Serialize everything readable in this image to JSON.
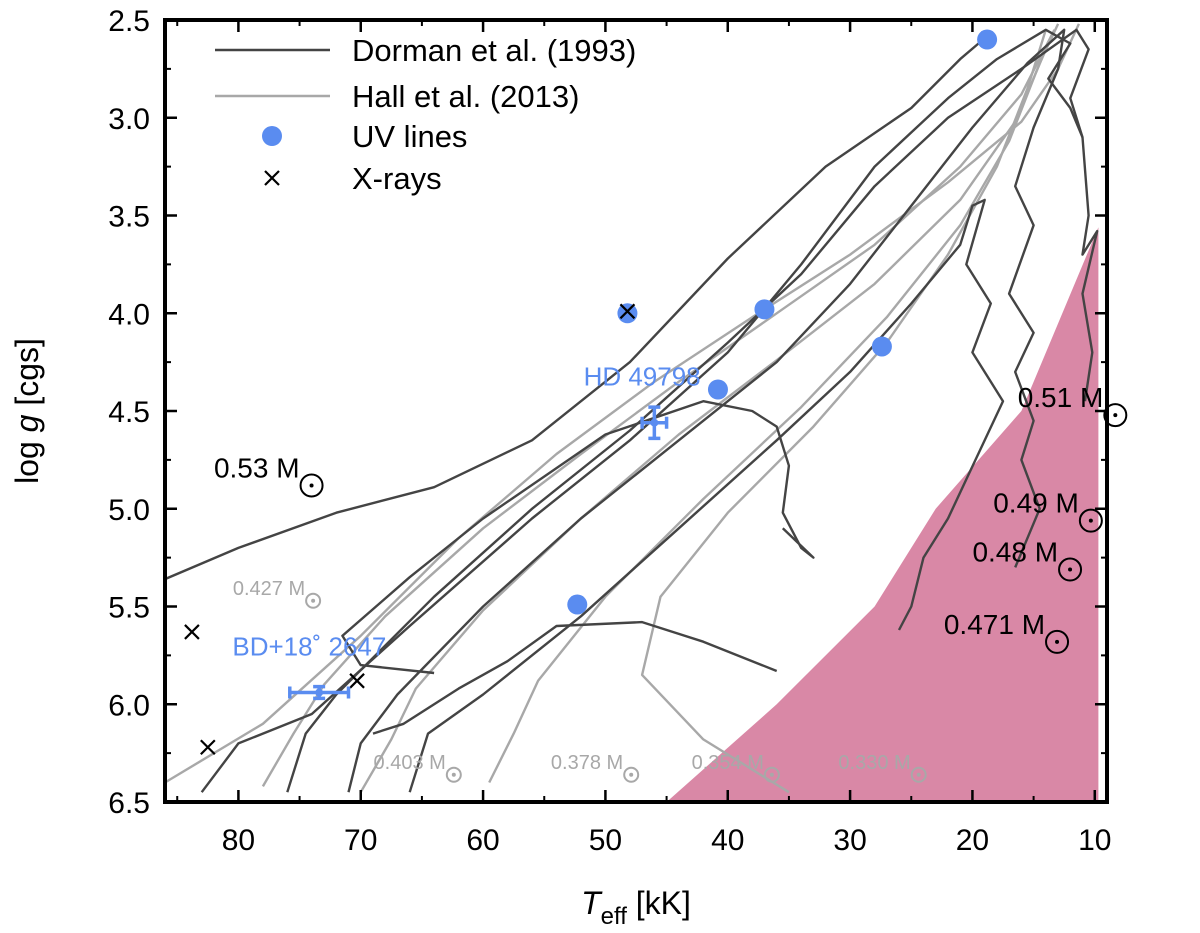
{
  "chart_data": {
    "type": "scatter",
    "xlabel_main": "T",
    "xlabel_sub": "eff",
    "xlabel_unit": " [kK]",
    "ylabel_main": "log ",
    "ylabel_italic": "g",
    "ylabel_unit": " [cgs]",
    "xlim": [
      86,
      9
    ],
    "ylim": [
      6.5,
      2.5
    ],
    "x_ticks": [
      80,
      70,
      60,
      50,
      40,
      30,
      20,
      10
    ],
    "x_tick_labels": [
      "80",
      "70",
      "60",
      "50",
      "40",
      "30",
      "20",
      "10"
    ],
    "y_ticks": [
      2.5,
      3.0,
      3.5,
      4.0,
      4.5,
      5.0,
      5.5,
      6.0,
      6.5
    ],
    "y_tick_labels": [
      "2.5",
      "3.0",
      "3.5",
      "4.0",
      "4.5",
      "5.0",
      "5.5",
      "6.0",
      "6.5"
    ],
    "legend": {
      "position": "top-left",
      "entries": [
        {
          "label": "Dorman et al. (1993)",
          "kind": "line",
          "color": "#444444"
        },
        {
          "label": "Hall et al. (2013)",
          "kind": "line",
          "color": "#a8a8a8"
        },
        {
          "label": "UV lines",
          "kind": "circle",
          "color": "#5a8cf0"
        },
        {
          "label": "X-rays",
          "kind": "cross",
          "color": "#000000"
        }
      ]
    },
    "series": [
      {
        "name": "UV lines",
        "color": "#5a8cf0",
        "points": [
          {
            "x": 18.8,
            "y": 2.6
          },
          {
            "x": 48.2,
            "y": 4.0
          },
          {
            "x": 37.0,
            "y": 3.98
          },
          {
            "x": 27.4,
            "y": 4.17
          },
          {
            "x": 40.8,
            "y": 4.39
          },
          {
            "x": 52.3,
            "y": 5.49
          }
        ]
      },
      {
        "name": "X-rays",
        "color": "#000000",
        "points": [
          {
            "x": 48.2,
            "y": 3.99
          },
          {
            "x": 83.8,
            "y": 5.63
          },
          {
            "x": 70.3,
            "y": 5.88
          },
          {
            "x": 82.5,
            "y": 6.22
          }
        ]
      }
    ],
    "stars": [
      {
        "label": "HD 49798",
        "x": 46.0,
        "y": 4.56,
        "xerr": 1.0,
        "yerr": 0.08,
        "label_x": 47.0,
        "label_y": 4.37
      },
      {
        "label": "BD+18˚ 2647",
        "x": 73.4,
        "y": 5.94,
        "xerr": 2.4,
        "yerr": 0.03,
        "label_x": 74.2,
        "label_y": 5.75
      }
    ],
    "shaded_region": {
      "name": "excluded region",
      "color": "#d988a6",
      "polygon": [
        [
          45.0,
          6.5
        ],
        [
          9.7,
          6.5
        ],
        [
          9.7,
          3.56
        ],
        [
          16.0,
          4.5
        ],
        [
          23.0,
          5.0
        ],
        [
          28.0,
          5.5
        ],
        [
          36.0,
          6.0
        ]
      ]
    },
    "hall_tracks": [
      {
        "mass": "0.427 M",
        "points": [
          [
            86.0,
            6.4
          ],
          [
            78.0,
            6.1
          ],
          [
            70.0,
            5.65
          ],
          [
            62.0,
            5.15
          ],
          [
            54.0,
            4.72
          ],
          [
            46.0,
            4.35
          ],
          [
            38.0,
            4.02
          ],
          [
            30.0,
            3.7
          ],
          [
            22.0,
            3.33
          ],
          [
            16.0,
            3.02
          ],
          [
            13.0,
            2.75
          ],
          [
            11.3,
            2.52
          ]
        ]
      },
      {
        "mass": "0.403 M",
        "points": [
          [
            78.0,
            6.42
          ],
          [
            75.5,
            6.15
          ],
          [
            73.0,
            5.9
          ],
          [
            68.0,
            5.55
          ],
          [
            60.0,
            5.1
          ],
          [
            52.0,
            4.72
          ],
          [
            44.0,
            4.35
          ],
          [
            36.0,
            4.0
          ],
          [
            28.0,
            3.65
          ],
          [
            21.0,
            3.25
          ],
          [
            16.0,
            2.88
          ],
          [
            13.3,
            2.55
          ]
        ]
      },
      {
        "mass": "0.378 M",
        "points": [
          [
            70.0,
            6.45
          ],
          [
            67.5,
            6.18
          ],
          [
            65.5,
            5.92
          ],
          [
            60.0,
            5.52
          ],
          [
            52.0,
            5.05
          ],
          [
            44.0,
            4.62
          ],
          [
            36.0,
            4.24
          ],
          [
            28.0,
            3.85
          ],
          [
            21.0,
            3.42
          ],
          [
            16.5,
            3.02
          ],
          [
            13.8,
            2.62
          ]
        ]
      },
      {
        "mass": "0.354 M",
        "points": [
          [
            59.5,
            6.4
          ],
          [
            57.5,
            6.15
          ],
          [
            55.5,
            5.88
          ],
          [
            50.0,
            5.45
          ],
          [
            42.0,
            4.95
          ],
          [
            34.0,
            4.48
          ],
          [
            27.0,
            4.02
          ],
          [
            21.0,
            3.55
          ],
          [
            17.0,
            3.12
          ],
          [
            14.5,
            2.72
          ],
          [
            13.0,
            2.52
          ]
        ]
      },
      {
        "mass": "0.330 M",
        "points": [
          [
            35.0,
            6.45
          ],
          [
            42.0,
            6.18
          ],
          [
            47.0,
            5.85
          ],
          [
            45.5,
            5.45
          ],
          [
            40.0,
            5.02
          ],
          [
            33.0,
            4.58
          ],
          [
            27.0,
            4.15
          ],
          [
            22.0,
            3.7
          ],
          [
            18.0,
            3.25
          ],
          [
            15.5,
            2.85
          ],
          [
            14.0,
            2.55
          ]
        ]
      }
    ],
    "dorman_tracks": [
      {
        "mass": "0.53 M",
        "points": [
          [
            86.0,
            5.36
          ],
          [
            80.0,
            5.2
          ],
          [
            72.0,
            5.02
          ],
          [
            64.0,
            4.89
          ],
          [
            56.0,
            4.65
          ],
          [
            48.0,
            4.25
          ],
          [
            40.0,
            3.72
          ],
          [
            32.0,
            3.25
          ],
          [
            25.0,
            2.95
          ],
          [
            21.0,
            2.7
          ],
          [
            19.5,
            2.62
          ],
          [
            18.5,
            2.57
          ]
        ]
      },
      {
        "mass": "0.51 M",
        "points": [
          [
            83.0,
            6.45
          ],
          [
            80.0,
            6.2
          ],
          [
            74.0,
            6.05
          ],
          [
            66.0,
            5.6
          ],
          [
            56.0,
            5.05
          ],
          [
            48.0,
            4.65
          ],
          [
            40.0,
            4.2
          ],
          [
            34.0,
            3.75
          ],
          [
            28.0,
            3.25
          ],
          [
            22.0,
            2.9
          ],
          [
            18.0,
            2.7
          ],
          [
            14.0,
            2.55
          ],
          [
            12.0,
            2.62
          ],
          [
            13.8,
            2.8
          ],
          [
            12.0,
            2.95
          ],
          [
            11.0,
            3.1
          ]
        ]
      },
      {
        "mass": "0.49 M",
        "points": [
          [
            76.0,
            6.45
          ],
          [
            74.5,
            6.15
          ],
          [
            72.0,
            5.95
          ],
          [
            64.0,
            5.45
          ],
          [
            56.0,
            5.0
          ],
          [
            48.0,
            4.6
          ],
          [
            40.0,
            4.15
          ],
          [
            34.0,
            3.8
          ],
          [
            28.0,
            3.35
          ],
          [
            22.0,
            3.0
          ],
          [
            16.0,
            2.75
          ],
          [
            11.5,
            2.55
          ],
          [
            10.5,
            2.65
          ],
          [
            12.0,
            2.9
          ],
          [
            11.0,
            3.1
          ],
          [
            10.5,
            3.5
          ],
          [
            11.0,
            3.7
          ],
          [
            9.8,
            3.58
          ],
          [
            11.0,
            3.9
          ],
          [
            10.2,
            4.2
          ],
          [
            10.8,
            4.45
          ]
        ]
      },
      {
        "mass": "0.48 M",
        "points": [
          [
            71.0,
            6.45
          ],
          [
            70.0,
            6.2
          ],
          [
            67.0,
            5.95
          ],
          [
            60.0,
            5.5
          ],
          [
            52.0,
            5.05
          ],
          [
            44.0,
            4.65
          ],
          [
            36.0,
            4.25
          ],
          [
            30.0,
            3.85
          ],
          [
            25.0,
            3.45
          ],
          [
            20.0,
            3.05
          ],
          [
            15.5,
            2.72
          ],
          [
            12.5,
            2.55
          ],
          [
            13.0,
            2.75
          ],
          [
            15.0,
            3.05
          ],
          [
            16.5,
            3.35
          ],
          [
            15.0,
            3.55
          ],
          [
            17.0,
            3.9
          ],
          [
            15.0,
            4.1
          ],
          [
            16.5,
            4.3
          ],
          [
            15.0,
            4.55
          ],
          [
            16.0,
            4.75
          ],
          [
            14.5,
            5.0
          ],
          [
            16.5,
            5.3
          ]
        ]
      },
      {
        "mass": "0.471 M",
        "points": [
          [
            66.0,
            6.45
          ],
          [
            64.5,
            6.15
          ],
          [
            60.0,
            5.95
          ],
          [
            52.0,
            5.55
          ],
          [
            44.0,
            5.1
          ],
          [
            36.0,
            4.65
          ],
          [
            30.0,
            4.3
          ],
          [
            25.0,
            3.95
          ],
          [
            21.0,
            3.65
          ],
          [
            20.0,
            3.45
          ],
          [
            19.0,
            3.42
          ],
          [
            20.5,
            3.75
          ],
          [
            18.5,
            3.95
          ],
          [
            20.0,
            4.2
          ],
          [
            17.5,
            4.45
          ],
          [
            19.0,
            4.65
          ],
          [
            20.5,
            4.85
          ],
          [
            22.0,
            5.05
          ],
          [
            24.0,
            5.25
          ],
          [
            25.0,
            5.5
          ],
          [
            26.0,
            5.62
          ]
        ]
      },
      {
        "mass": "loop",
        "points": [
          [
            64.0,
            5.84
          ],
          [
            70.0,
            5.8
          ],
          [
            71.5,
            5.65
          ],
          [
            66.0,
            5.35
          ],
          [
            60.0,
            5.05
          ],
          [
            50.0,
            4.62
          ],
          [
            42.0,
            4.45
          ],
          [
            38.0,
            4.5
          ],
          [
            36.0,
            4.58
          ],
          [
            35.0,
            4.78
          ],
          [
            35.5,
            5.02
          ],
          [
            34.0,
            5.2
          ],
          [
            33.0,
            5.25
          ],
          [
            35.5,
            5.1
          ]
        ]
      },
      {
        "mass": "loop2",
        "points": [
          [
            36.0,
            5.83
          ],
          [
            42.0,
            5.68
          ],
          [
            47.0,
            5.58
          ],
          [
            54.0,
            5.6
          ],
          [
            58.0,
            5.78
          ],
          [
            62.0,
            5.92
          ],
          [
            66.5,
            6.1
          ],
          [
            69.0,
            6.15
          ]
        ]
      }
    ],
    "mass_labels_dark": [
      {
        "text": "0.53 M",
        "x": 78.5,
        "y": 4.84
      },
      {
        "text": "0.51 M",
        "x": 12.8,
        "y": 4.48
      },
      {
        "text": "0.49 M",
        "x": 14.8,
        "y": 5.02
      },
      {
        "text": "0.48 M",
        "x": 16.5,
        "y": 5.27
      },
      {
        "text": "0.471 M",
        "x": 18.2,
        "y": 5.64
      }
    ],
    "mass_labels_grey": [
      {
        "text": "0.427 M",
        "x": 77.5,
        "y": 5.44
      },
      {
        "text": "0.403 M",
        "x": 66.0,
        "y": 6.33
      },
      {
        "text": "0.378 M",
        "x": 51.5,
        "y": 6.33
      },
      {
        "text": "0.354 M",
        "x": 40.0,
        "y": 6.33
      },
      {
        "text": "0.330 M",
        "x": 28.0,
        "y": 6.33
      }
    ]
  }
}
